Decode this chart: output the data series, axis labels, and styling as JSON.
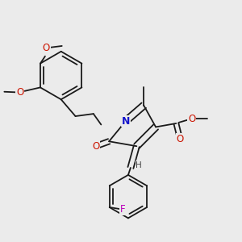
{
  "background_color": "#ebebeb",
  "bond_color": "#1a1a1a",
  "nitrogen_color": "#1414cc",
  "oxygen_color": "#cc1400",
  "fluorine_color": "#bb00bb",
  "hydrogen_color": "#444444",
  "figsize": [
    3.0,
    3.0
  ],
  "dpi": 100,
  "xlim": [
    0,
    10
  ],
  "ylim": [
    0,
    10
  ]
}
